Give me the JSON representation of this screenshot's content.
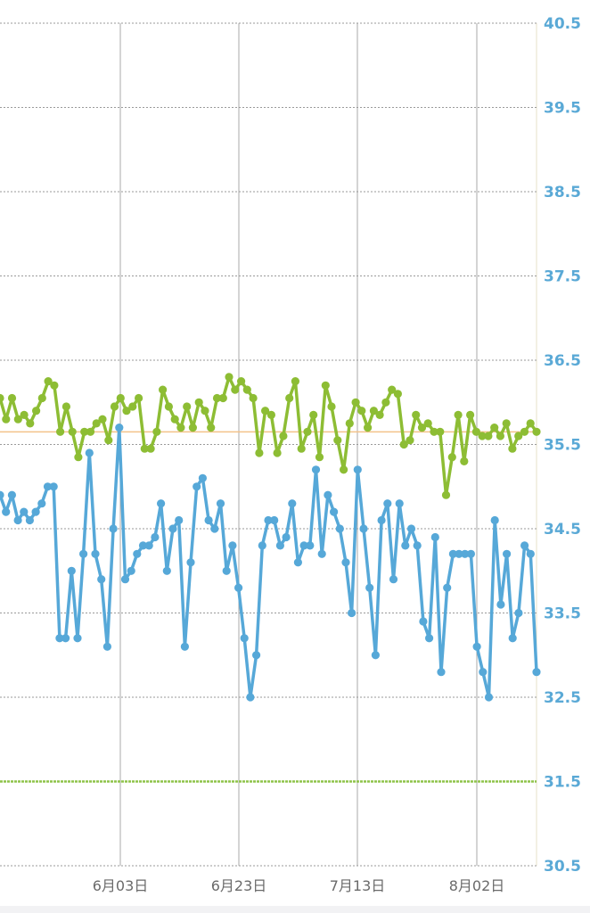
{
  "chart_data": {
    "type": "line",
    "x_ticks": [
      "6月03日",
      "6月23日",
      "7月13日",
      "8月02日"
    ],
    "y_ticks": [
      "40.5",
      "39.5",
      "38.5",
      "37.5",
      "36.5",
      "35.5",
      "34.5",
      "33.5",
      "32.5",
      "31.5",
      "30.5"
    ],
    "ylim": [
      30.5,
      40.5
    ],
    "grid": true,
    "reference_lines": [
      {
        "value": 35.65,
        "color": "#f3c28a"
      },
      {
        "value": 31.5,
        "color": "#8fc34a"
      }
    ],
    "series": [
      {
        "color": "#8dbd34",
        "values": [
          36.05,
          35.8,
          36.05,
          35.8,
          35.85,
          35.75,
          35.9,
          36.05,
          36.25,
          36.2,
          35.65,
          35.95,
          35.65,
          35.35,
          35.65,
          35.65,
          35.75,
          35.8,
          35.55,
          35.95,
          36.05,
          35.9,
          35.95,
          36.05,
          35.45,
          35.45,
          35.65,
          36.15,
          35.95,
          35.8,
          35.7,
          35.95,
          35.7,
          36.0,
          35.9,
          35.7,
          36.05,
          36.05,
          36.3,
          36.15,
          36.25,
          36.15,
          36.05,
          35.4,
          35.9,
          35.85,
          35.4,
          35.6,
          36.05,
          36.25,
          35.45,
          35.65,
          35.85,
          35.35,
          36.2,
          35.95,
          35.55,
          35.2,
          35.75,
          36.0,
          35.9,
          35.7,
          35.9,
          35.85,
          36.0,
          36.15,
          36.1,
          35.5,
          35.55,
          35.85,
          35.7,
          35.75,
          35.65,
          35.65,
          34.9,
          35.35,
          35.85,
          35.3,
          35.85,
          35.65,
          35.6,
          35.6,
          35.7,
          35.6,
          35.75,
          35.45,
          35.6,
          35.65,
          35.75,
          35.65
        ]
      },
      {
        "color": "#56a8d8",
        "values": [
          34.9,
          34.7,
          34.9,
          34.6,
          34.7,
          34.6,
          34.7,
          34.8,
          35.0,
          35.0,
          33.2,
          33.2,
          34.0,
          33.2,
          34.2,
          35.4,
          34.2,
          33.9,
          33.1,
          34.5,
          35.7,
          33.9,
          34.0,
          34.2,
          34.3,
          34.3,
          34.4,
          34.8,
          34.0,
          34.5,
          34.6,
          33.1,
          34.1,
          35.0,
          35.1,
          34.6,
          34.5,
          34.8,
          34.0,
          34.3,
          33.8,
          33.2,
          32.5,
          33.0,
          34.3,
          34.6,
          34.6,
          34.3,
          34.4,
          34.8,
          34.1,
          34.3,
          34.3,
          35.2,
          34.2,
          34.9,
          34.7,
          34.5,
          34.1,
          33.5,
          35.2,
          34.5,
          33.8,
          33.0,
          34.6,
          34.8,
          33.9,
          34.8,
          34.3,
          34.5,
          34.3,
          33.4,
          33.2,
          34.4,
          32.8,
          33.8,
          34.2,
          34.2,
          34.2,
          34.2,
          33.1,
          32.8,
          32.5,
          34.6,
          33.6,
          34.2,
          33.2,
          33.5,
          34.3,
          34.2,
          32.8
        ]
      }
    ]
  }
}
